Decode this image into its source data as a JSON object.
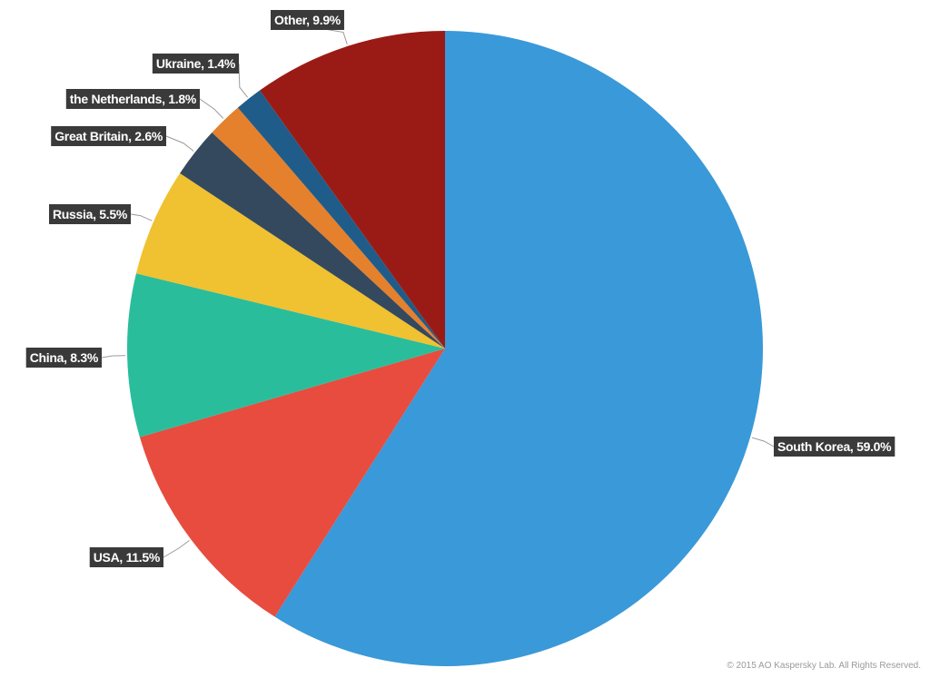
{
  "chart_data": {
    "type": "pie",
    "start_angle_deg": 0,
    "direction": "clockwise",
    "legend": "none",
    "slices": [
      {
        "label": "South Korea",
        "value": 59.0,
        "display": "South Korea, 59.0%",
        "color": "#3a99d8"
      },
      {
        "label": "USA",
        "value": 11.5,
        "display": "USA, 11.5%",
        "color": "#e74c3f"
      },
      {
        "label": "China",
        "value": 8.3,
        "display": "China, 8.3%",
        "color": "#2abd9b"
      },
      {
        "label": "Russia",
        "value": 5.5,
        "display": "Russia, 5.5%",
        "color": "#f0c130"
      },
      {
        "label": "Great Britain",
        "value": 2.6,
        "display": "Great Britain, 2.6%",
        "color": "#34495e"
      },
      {
        "label": "the Netherlands",
        "value": 1.8,
        "display": "the Netherlands, 1.8%",
        "color": "#e5802c"
      },
      {
        "label": "Ukraine",
        "value": 1.4,
        "display": "Ukraine, 1.4%",
        "color": "#1f5c8a"
      },
      {
        "label": "Other",
        "value": 9.9,
        "display": "Other, 9.9%",
        "color": "#9a1b15"
      }
    ]
  },
  "footer": {
    "copyright": "© 2015 AO Kaspersky Lab. All Rights Reserved."
  }
}
